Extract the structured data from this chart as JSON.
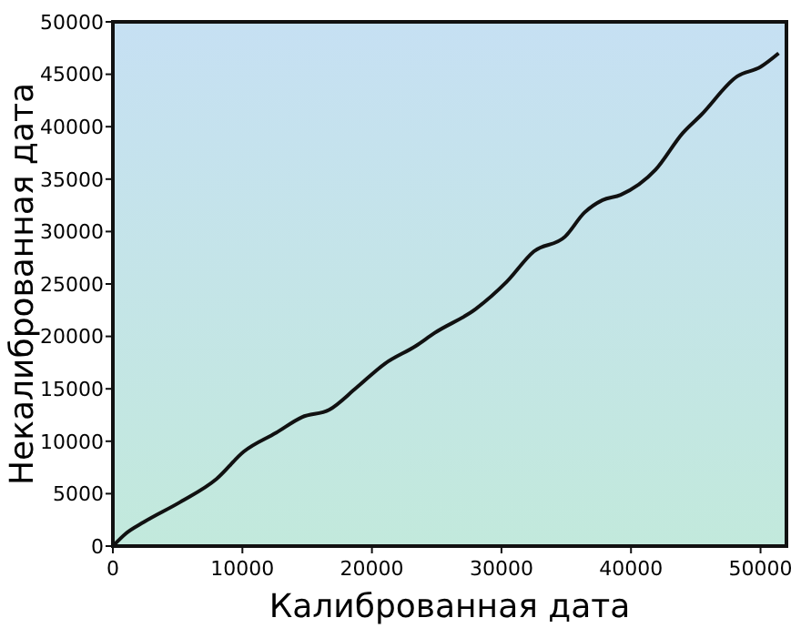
{
  "chart_data": {
    "type": "line",
    "xlabel": "Калиброванная дата",
    "ylabel": "Некалиброванная дата",
    "xlim": [
      0,
      52000
    ],
    "ylim": [
      0,
      50000
    ],
    "xticks": [
      0,
      10000,
      20000,
      30000,
      40000,
      50000
    ],
    "yticks": [
      0,
      5000,
      10000,
      15000,
      20000,
      25000,
      30000,
      35000,
      40000,
      45000,
      50000
    ],
    "grid": false,
    "line_style": "solid",
    "series": [
      {
        "color": "#111111",
        "x": [
          0,
          1000,
          2400,
          5200,
          8000,
          10100,
          12600,
          14600,
          16700,
          18800,
          21000,
          23400,
          24800,
          28000,
          30400,
          32500,
          34900,
          36400,
          37800,
          39200,
          41900,
          44000,
          45400,
          48200,
          50000,
          51400
        ],
        "values": [
          0,
          1200,
          2300,
          4200,
          6400,
          9000,
          10800,
          12300,
          13000,
          15100,
          17400,
          19100,
          20300,
          22600,
          25200,
          28100,
          29500,
          31800,
          33000,
          33500,
          35900,
          39400,
          41100,
          44800,
          45700,
          47000
        ]
      }
    ]
  }
}
